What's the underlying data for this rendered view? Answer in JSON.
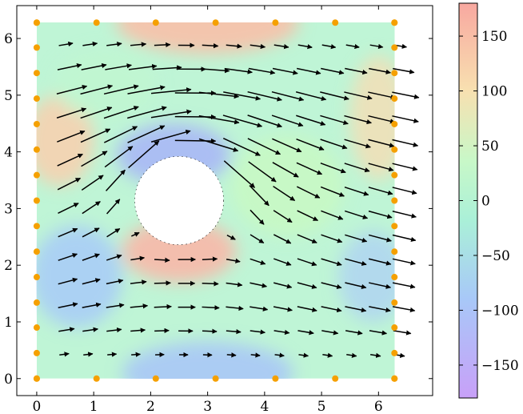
{
  "chart_data": {
    "type": "quiver",
    "title": "",
    "xlabel": "",
    "ylabel": "",
    "xlim": [
      -0.35,
      6.95
    ],
    "ylim": [
      -0.3,
      6.58
    ],
    "x_ticks": [
      0,
      1,
      2,
      3,
      4,
      5,
      6
    ],
    "x_tick_labels": [
      "0",
      "1",
      "2",
      "3",
      "4",
      "5",
      "6"
    ],
    "y_ticks": [
      0,
      1,
      2,
      3,
      4,
      5,
      6
    ],
    "y_tick_labels": [
      "0",
      "1",
      "2",
      "3",
      "4",
      "5",
      "6"
    ],
    "domain": {
      "x": [
        0,
        6.283
      ],
      "y": [
        0,
        6.283
      ]
    },
    "obstacle": {
      "type": "circle",
      "center": [
        2.5,
        3.14
      ],
      "radius": 0.78
    },
    "background_field": {
      "description": "pressure-like scalar field shown as color",
      "range": [
        -180,
        180
      ],
      "colormap": [
        "#c8a0f8",
        "#a8c8f8",
        "#aaf0d8",
        "#c8f8c8",
        "#f8e0b0",
        "#f8a8a0"
      ]
    },
    "quiver": {
      "grid_spacing": 0.42,
      "pattern": "uniform rightward flow around a cylinder with a vortex; arrows sweep up-right above the cylinder and down-right below it"
    },
    "boundary_points": {
      "color": "#f5a000",
      "top": [
        [
          0,
          6.28
        ],
        [
          1.05,
          6.28
        ],
        [
          2.09,
          6.28
        ],
        [
          3.14,
          6.28
        ],
        [
          4.19,
          6.28
        ],
        [
          5.24,
          6.28
        ],
        [
          6.28,
          6.28
        ]
      ],
      "bottom": [
        [
          0,
          0
        ],
        [
          1.05,
          0
        ],
        [
          2.09,
          0
        ],
        [
          3.14,
          0
        ],
        [
          4.19,
          0
        ],
        [
          5.24,
          0
        ],
        [
          6.28,
          0
        ]
      ],
      "left_x": 0,
      "right_x": 6.28,
      "side_y": [
        0,
        0.45,
        0.9,
        1.34,
        1.79,
        2.24,
        2.69,
        3.14,
        3.59,
        4.04,
        4.49,
        4.94,
        5.39,
        5.84,
        6.28
      ]
    },
    "colorbar": {
      "range": [
        -180,
        180
      ],
      "ticks": [
        -150,
        -100,
        -50,
        0,
        50,
        100,
        150
      ],
      "tick_labels": [
        "−150",
        "−100",
        "−50",
        "0",
        "50",
        "100",
        "150"
      ]
    }
  }
}
